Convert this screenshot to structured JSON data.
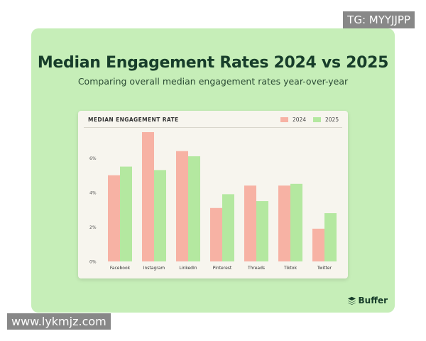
{
  "colors": {
    "series_2024": "#f7b2a4",
    "series_2025": "#b4e8a0",
    "card_bg": "#c6eeb8"
  },
  "icons": {
    "brand": "buffer-logo-icon"
  },
  "brand": {
    "name": "Buffer"
  },
  "watermarks": {
    "top": "TG: MYYJJPP",
    "bottom": "www.lykmjz.com"
  },
  "chart_data": {
    "type": "bar",
    "title": "Median Engagement Rates 2024 vs 2025",
    "subtitle": "Comparing overall median engagement rates year-over-year",
    "panel_title": "MEDIAN ENGAGEMENT RATE",
    "categories": [
      "Facebook",
      "Instagram",
      "LinkedIn",
      "Pinterest",
      "Threads",
      "Tiktok",
      "Twitter"
    ],
    "series": [
      {
        "name": "2024",
        "values": [
          5.0,
          7.5,
          6.4,
          3.1,
          4.4,
          4.4,
          1.9
        ]
      },
      {
        "name": "2025",
        "values": [
          5.5,
          5.3,
          6.1,
          3.9,
          3.5,
          4.5,
          2.8
        ]
      }
    ],
    "yticks": [
      "0%",
      "2%",
      "4%",
      "6%"
    ],
    "ytick_values": [
      0,
      2,
      4,
      6
    ],
    "ylim": [
      0,
      7.5
    ],
    "xlabel": "",
    "ylabel": ""
  }
}
